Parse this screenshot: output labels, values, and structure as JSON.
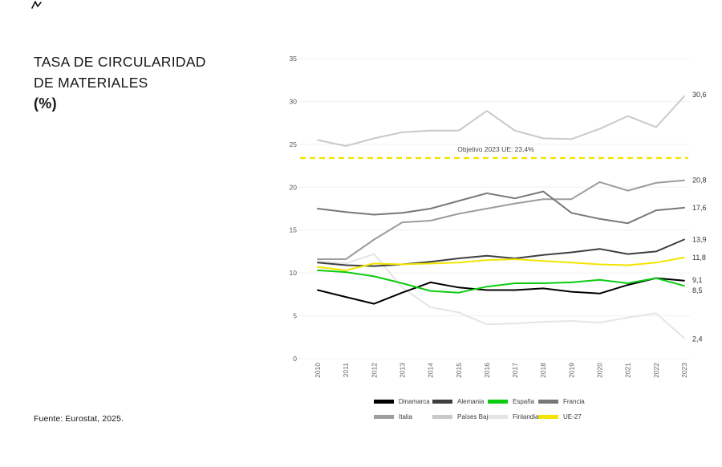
{
  "page": {
    "title_line1": "TASA DE CIRCULARIDAD",
    "title_line2": "DE MATERIALES",
    "title_line3": "(%)",
    "source": "Fuente: Eurostat, 2025."
  },
  "chart_data": {
    "type": "line",
    "title": "TASA DE CIRCULARIDAD DE MATERIALES (%)",
    "xlabel": "",
    "ylabel": "",
    "x": [
      2010,
      2011,
      2012,
      2013,
      2014,
      2015,
      2016,
      2017,
      2018,
      2019,
      2020,
      2021,
      2022,
      2023
    ],
    "ylim": [
      0,
      35
    ],
    "yticks": [
      0,
      5,
      10,
      15,
      20,
      25,
      30,
      35
    ],
    "grid": true,
    "legend_position": "bottom",
    "target_line": {
      "value": 23.4,
      "label": "Objetivo 2023 UE: 23,4%",
      "color": "#f2e500",
      "style": "dashed"
    },
    "series": [
      {
        "name": "Dinamarca",
        "color": "#000000",
        "end_label": "9,1",
        "label_dy": -1,
        "values": [
          8.0,
          7.2,
          6.4,
          7.7,
          8.9,
          8.3,
          8.0,
          8.0,
          8.2,
          7.8,
          7.6,
          8.6,
          9.4,
          9.1
        ]
      },
      {
        "name": "Alemania",
        "color": "#3f3f3f",
        "end_label": "13,9",
        "label_dy": 0,
        "values": [
          11.2,
          10.9,
          10.8,
          11.0,
          11.3,
          11.7,
          12.0,
          11.7,
          12.1,
          12.4,
          12.8,
          12.2,
          12.5,
          13.9
        ]
      },
      {
        "name": "España",
        "color": "#0ccc11",
        "end_label": "8,5",
        "label_dy": 6,
        "values": [
          10.3,
          10.1,
          9.6,
          8.8,
          7.9,
          7.7,
          8.4,
          8.8,
          8.8,
          8.9,
          9.2,
          8.8,
          9.4,
          8.5
        ]
      },
      {
        "name": "Francia",
        "color": "#787878",
        "end_label": "17,6",
        "label_dy": 0,
        "values": [
          17.5,
          17.1,
          16.8,
          17.0,
          17.5,
          18.4,
          19.3,
          18.7,
          19.5,
          17.0,
          16.3,
          15.8,
          17.3,
          17.6
        ]
      },
      {
        "name": "Italia",
        "color": "#9d9d9d",
        "end_label": "20,8",
        "label_dy": 0,
        "values": [
          11.6,
          11.6,
          13.9,
          15.9,
          16.1,
          16.9,
          17.5,
          18.1,
          18.6,
          18.6,
          20.6,
          19.6,
          20.5,
          20.8
        ]
      },
      {
        "name": "Países Bajos",
        "color": "#c9c9c9",
        "end_label": "30,6",
        "label_dy": -2,
        "values": [
          25.5,
          24.8,
          25.7,
          26.4,
          26.6,
          26.6,
          28.9,
          26.6,
          25.7,
          25.6,
          26.8,
          28.3,
          27.0,
          30.6
        ]
      },
      {
        "name": "Finlandia",
        "color": "#e5e5e5",
        "end_label": "2,4",
        "label_dy": 1,
        "values": [
          11.4,
          11.1,
          12.2,
          8.3,
          6.0,
          5.4,
          4.0,
          4.1,
          4.3,
          4.4,
          4.2,
          4.8,
          5.3,
          2.4
        ]
      },
      {
        "name": "UE-27",
        "color": "#f2e500",
        "end_label": "11,8",
        "label_dy": 0,
        "values": [
          10.7,
          10.3,
          11.1,
          11.0,
          11.1,
          11.2,
          11.5,
          11.6,
          11.4,
          11.2,
          11.0,
          10.9,
          11.2,
          11.8
        ]
      }
    ],
    "draw_order": [
      "Finlandia",
      "Países Bajos",
      "Italia",
      "Francia",
      "Alemania",
      "Dinamarca",
      "España",
      "UE-27"
    ]
  }
}
